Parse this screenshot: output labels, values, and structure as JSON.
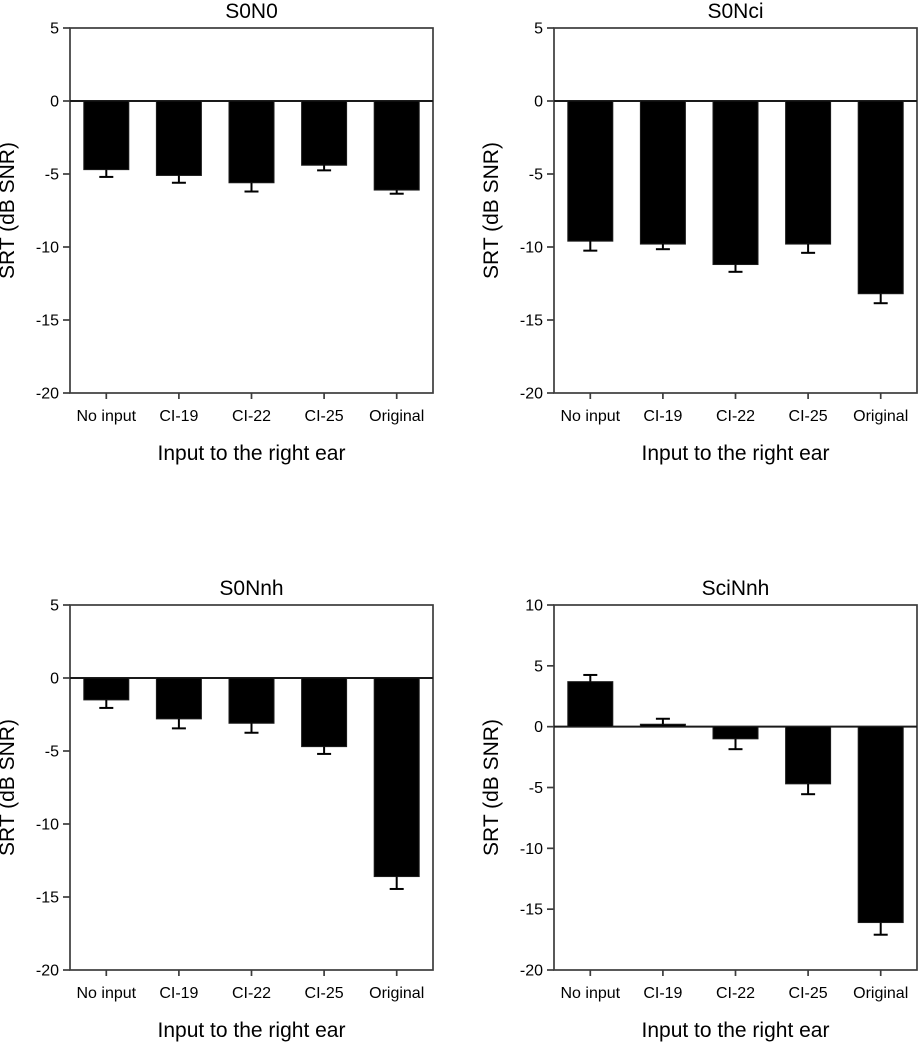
{
  "figure": {
    "background": "#ffffff",
    "colors": {
      "bar": "#000000",
      "frame": "#3c3c3c",
      "zero_line": "#1a1a1a",
      "error_bar": "#000000",
      "text": "#000000"
    }
  },
  "chart_data": [
    {
      "type": "bar",
      "title": "S0N0",
      "xlabel": "Input to the right ear",
      "ylabel": "SRT (dB SNR)",
      "categories": [
        "No input",
        "CI-19",
        "CI-22",
        "CI-25",
        "Original"
      ],
      "values": [
        -4.7,
        -5.1,
        -5.6,
        -4.4,
        -6.1
      ],
      "errors": [
        0.5,
        0.5,
        0.6,
        0.35,
        0.25
      ],
      "error_direction": "away-from-zero",
      "ylim": [
        -20,
        5
      ],
      "yticks": [
        5,
        0,
        -5,
        -10,
        -15,
        -20
      ],
      "grid": false,
      "legend": "none",
      "bar_color": "#000000"
    },
    {
      "type": "bar",
      "title": "S0Nci",
      "xlabel": "Input to the right ear",
      "ylabel": "SRT (dB SNR)",
      "categories": [
        "No input",
        "CI-19",
        "CI-22",
        "CI-25",
        "Original"
      ],
      "values": [
        -9.6,
        -9.8,
        -11.2,
        -9.8,
        -13.2
      ],
      "errors": [
        0.65,
        0.35,
        0.5,
        0.6,
        0.65
      ],
      "error_direction": "away-from-zero",
      "ylim": [
        -20,
        5
      ],
      "yticks": [
        5,
        0,
        -5,
        -10,
        -15,
        -20
      ],
      "grid": false,
      "legend": "none",
      "bar_color": "#000000"
    },
    {
      "type": "bar",
      "title": "S0Nnh",
      "xlabel": "Input to the right ear",
      "ylabel": "SRT (dB SNR)",
      "categories": [
        "No input",
        "CI-19",
        "CI-22",
        "CI-25",
        "Original"
      ],
      "values": [
        -1.5,
        -2.8,
        -3.1,
        -4.7,
        -13.6
      ],
      "errors": [
        0.55,
        0.65,
        0.65,
        0.5,
        0.85
      ],
      "error_direction": "away-from-zero",
      "ylim": [
        -20,
        5
      ],
      "yticks": [
        5,
        0,
        -5,
        -10,
        -15,
        -20
      ],
      "grid": false,
      "legend": "none",
      "bar_color": "#000000"
    },
    {
      "type": "bar",
      "title": "SciNnh",
      "xlabel": "Input to the right ear",
      "ylabel": "SRT (dB SNR)",
      "categories": [
        "No input",
        "CI-19",
        "CI-22",
        "CI-25",
        "Original"
      ],
      "values": [
        3.7,
        0.2,
        -1.0,
        -4.7,
        -16.1
      ],
      "errors": [
        0.55,
        0.45,
        0.85,
        0.85,
        1.0
      ],
      "error_direction": "away-from-zero",
      "ylim": [
        -20,
        10
      ],
      "yticks": [
        10,
        5,
        0,
        -5,
        -10,
        -15,
        -20
      ],
      "grid": false,
      "legend": "none",
      "bar_color": "#000000"
    }
  ]
}
